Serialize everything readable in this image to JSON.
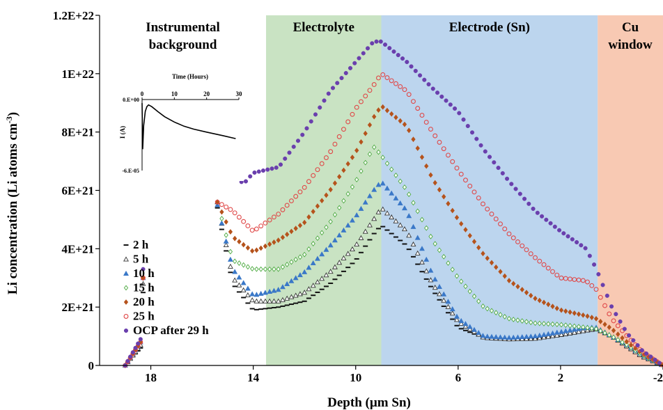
{
  "chart_data": {
    "type": "scatter",
    "xlabel": "Depth (µm Sn)",
    "ylabel": "Li concentration (Li atoms cm",
    "ylabel_sup": "-3",
    "ylabel_end": ")",
    "xlim": [
      20,
      -2
    ],
    "ylim": [
      0,
      1.2e+22
    ],
    "x_ticks": [
      18,
      14,
      10,
      6,
      2,
      -2
    ],
    "x_tick_labels": [
      "18",
      "14",
      "10",
      "6",
      "2",
      "-2"
    ],
    "y_ticks": [
      0,
      2e+21,
      4e+21,
      6e+21,
      8e+21,
      1e+22,
      1.2e+22
    ],
    "y_tick_labels": [
      "0",
      "2E+21",
      "4E+21",
      "6E+21",
      "8E+21",
      "1E+22",
      "1.2E+22"
    ],
    "regions": [
      {
        "label_lines": [
          "Instrumental",
          "background"
        ],
        "from": 20,
        "to": 13.5,
        "color": "#ffffff"
      },
      {
        "label_lines": [
          "Electrolyte"
        ],
        "from": 13.5,
        "to": 9.0,
        "color": "#c9e3c3"
      },
      {
        "label_lines": [
          "Electrode (Sn)"
        ],
        "from": 9.0,
        "to": 0.55,
        "color": "#bcd5ee"
      },
      {
        "label_lines": [
          "Cu",
          "window"
        ],
        "from": 0.55,
        "to": -2,
        "color": "#f8c9b3"
      }
    ],
    "series": [
      {
        "name": "2 h",
        "marker": "dash",
        "color": "#111111",
        "knots": [
          [
            19.0,
            0.0
          ],
          [
            18.4,
            0.6
          ],
          [
            18.3,
            2.5
          ],
          [
            18.2,
            0.3
          ],
          [
            15.4,
            5.4
          ],
          [
            14.8,
            2.8
          ],
          [
            14.0,
            1.9
          ],
          [
            13.0,
            2.0
          ],
          [
            12.0,
            2.2
          ],
          [
            11.0,
            2.8
          ],
          [
            10.0,
            3.6
          ],
          [
            9.3,
            4.5
          ],
          [
            9.0,
            4.8
          ],
          [
            8.0,
            4.1
          ],
          [
            7.0,
            2.6
          ],
          [
            6.0,
            1.3
          ],
          [
            5.0,
            0.95
          ],
          [
            4.0,
            0.9
          ],
          [
            3.0,
            0.92
          ],
          [
            2.0,
            1.0
          ],
          [
            1.0,
            1.15
          ],
          [
            0.6,
            1.2
          ],
          [
            0.0,
            0.95
          ],
          [
            -0.6,
            0.6
          ],
          [
            -1.2,
            0.25
          ],
          [
            -2.0,
            0.0
          ]
        ]
      },
      {
        "name": "5 h",
        "marker": "triangle-open",
        "color": "#333333",
        "knots": [
          [
            19.0,
            0.0
          ],
          [
            18.4,
            0.7
          ],
          [
            18.3,
            2.8
          ],
          [
            18.2,
            0.3
          ],
          [
            15.4,
            5.6
          ],
          [
            14.8,
            3.0
          ],
          [
            14.0,
            2.2
          ],
          [
            13.0,
            2.2
          ],
          [
            12.0,
            2.5
          ],
          [
            11.0,
            3.2
          ],
          [
            10.0,
            4.1
          ],
          [
            9.3,
            5.0
          ],
          [
            9.0,
            5.4
          ],
          [
            8.0,
            4.6
          ],
          [
            7.0,
            2.8
          ],
          [
            6.0,
            1.5
          ],
          [
            5.0,
            0.95
          ],
          [
            4.0,
            0.9
          ],
          [
            3.0,
            0.92
          ],
          [
            2.0,
            1.05
          ],
          [
            1.0,
            1.2
          ],
          [
            0.6,
            1.25
          ],
          [
            0.0,
            1.0
          ],
          [
            -0.6,
            0.65
          ],
          [
            -1.2,
            0.3
          ],
          [
            -2.0,
            0.0
          ]
        ]
      },
      {
        "name": "10 h",
        "marker": "triangle",
        "color": "#3a78c8",
        "knots": [
          [
            19.0,
            0.0
          ],
          [
            18.4,
            0.8
          ],
          [
            18.3,
            3.0
          ],
          [
            18.2,
            0.3
          ],
          [
            15.4,
            5.5
          ],
          [
            14.8,
            3.3
          ],
          [
            14.0,
            2.4
          ],
          [
            13.0,
            2.6
          ],
          [
            12.0,
            3.2
          ],
          [
            11.0,
            4.1
          ],
          [
            10.0,
            5.1
          ],
          [
            9.3,
            6.0
          ],
          [
            9.0,
            6.3
          ],
          [
            8.0,
            5.3
          ],
          [
            7.0,
            3.1
          ],
          [
            6.0,
            1.6
          ],
          [
            5.0,
            1.0
          ],
          [
            4.0,
            0.95
          ],
          [
            3.0,
            1.0
          ],
          [
            2.0,
            1.15
          ],
          [
            1.0,
            1.3
          ],
          [
            0.6,
            1.3
          ],
          [
            0.0,
            1.0
          ],
          [
            -0.6,
            0.7
          ],
          [
            -1.2,
            0.35
          ],
          [
            -2.0,
            0.0
          ]
        ]
      },
      {
        "name": "15 h",
        "marker": "diamond-open",
        "color": "#4caa40",
        "knots": [
          [
            19.0,
            0.0
          ],
          [
            18.4,
            0.8
          ],
          [
            18.3,
            3.0
          ],
          [
            18.2,
            0.3
          ],
          [
            15.4,
            5.6
          ],
          [
            14.8,
            3.6
          ],
          [
            14.0,
            3.3
          ],
          [
            13.0,
            3.3
          ],
          [
            12.0,
            3.8
          ],
          [
            11.0,
            4.9
          ],
          [
            10.0,
            6.3
          ],
          [
            9.3,
            7.5
          ],
          [
            9.0,
            7.2
          ],
          [
            8.0,
            6.0
          ],
          [
            7.0,
            4.3
          ],
          [
            6.0,
            3.0
          ],
          [
            5.0,
            2.0
          ],
          [
            4.0,
            1.6
          ],
          [
            3.0,
            1.45
          ],
          [
            2.0,
            1.4
          ],
          [
            1.0,
            1.3
          ],
          [
            0.6,
            1.25
          ],
          [
            0.0,
            1.0
          ],
          [
            -0.6,
            0.7
          ],
          [
            -1.2,
            0.35
          ],
          [
            -2.0,
            0.0
          ]
        ]
      },
      {
        "name": "20 h",
        "marker": "diamond",
        "color": "#b5531c",
        "knots": [
          [
            19.0,
            0.0
          ],
          [
            18.4,
            0.8
          ],
          [
            18.3,
            3.0
          ],
          [
            18.2,
            0.3
          ],
          [
            15.4,
            5.6
          ],
          [
            14.8,
            4.4
          ],
          [
            14.0,
            3.9
          ],
          [
            13.0,
            4.3
          ],
          [
            12.0,
            4.9
          ],
          [
            11.0,
            6.0
          ],
          [
            10.0,
            7.3
          ],
          [
            9.3,
            8.5
          ],
          [
            9.0,
            8.9
          ],
          [
            8.0,
            8.2
          ],
          [
            7.0,
            6.4
          ],
          [
            6.0,
            5.0
          ],
          [
            5.0,
            3.8
          ],
          [
            4.0,
            2.9
          ],
          [
            3.0,
            2.3
          ],
          [
            2.0,
            1.9
          ],
          [
            1.0,
            1.7
          ],
          [
            0.6,
            1.6
          ],
          [
            0.0,
            1.25
          ],
          [
            -0.6,
            0.8
          ],
          [
            -1.2,
            0.4
          ],
          [
            -2.0,
            0.0
          ]
        ]
      },
      {
        "name": "25 h",
        "marker": "circle-open",
        "color": "#e04848",
        "knots": [
          [
            19.0,
            0.0
          ],
          [
            18.4,
            0.8
          ],
          [
            18.3,
            3.0
          ],
          [
            18.2,
            0.3
          ],
          [
            15.4,
            5.6
          ],
          [
            14.8,
            5.3
          ],
          [
            14.0,
            4.6
          ],
          [
            13.0,
            5.2
          ],
          [
            12.0,
            6.1
          ],
          [
            11.0,
            7.3
          ],
          [
            10.0,
            8.8
          ],
          [
            9.3,
            9.6
          ],
          [
            9.0,
            10.0
          ],
          [
            8.0,
            9.4
          ],
          [
            7.0,
            8.0
          ],
          [
            6.0,
            6.7
          ],
          [
            5.0,
            5.5
          ],
          [
            4.0,
            4.5
          ],
          [
            3.0,
            3.7
          ],
          [
            2.0,
            3.0
          ],
          [
            1.0,
            2.9
          ],
          [
            0.6,
            2.6
          ],
          [
            0.0,
            1.6
          ],
          [
            -0.6,
            1.0
          ],
          [
            -1.2,
            0.45
          ],
          [
            -2.0,
            0.0
          ]
        ]
      },
      {
        "name": "OCP after 29 h",
        "marker": "circle",
        "color": "#6a3fad",
        "knots": [
          [
            19.0,
            0.0
          ],
          [
            18.4,
            0.9
          ],
          [
            18.3,
            3.3
          ],
          [
            18.2,
            0.3
          ],
          [
            14.8,
            6.8
          ],
          [
            14.4,
            6.2
          ],
          [
            14.0,
            6.6
          ],
          [
            13.0,
            6.8
          ],
          [
            12.0,
            8.0
          ],
          [
            11.0,
            9.4
          ],
          [
            10.0,
            10.4
          ],
          [
            9.3,
            11.1
          ],
          [
            9.0,
            11.1
          ],
          [
            8.0,
            10.4
          ],
          [
            7.0,
            9.5
          ],
          [
            6.0,
            8.7
          ],
          [
            5.0,
            7.4
          ],
          [
            4.0,
            6.3
          ],
          [
            3.0,
            5.3
          ],
          [
            2.0,
            4.6
          ],
          [
            1.0,
            4.0
          ],
          [
            0.6,
            3.3
          ],
          [
            0.0,
            2.0
          ],
          [
            -0.6,
            1.1
          ],
          [
            -1.2,
            0.5
          ],
          [
            -2.0,
            0.0
          ]
        ]
      }
    ],
    "inset": {
      "xlabel": "Time (Hours)",
      "ylabel": "I (A)",
      "xlim": [
        0,
        30
      ],
      "ylim": [
        -6e-05,
        0
      ],
      "x_ticks": [
        0,
        10,
        20,
        30
      ],
      "x_tick_labels": [
        "0",
        "10",
        "20",
        "30"
      ],
      "y_tick_labels": [
        "0.E+00",
        "-6.E-05"
      ],
      "curve": [
        [
          0.0,
          -0.3
        ],
        [
          0.2,
          -4.2
        ],
        [
          0.5,
          -2.2
        ],
        [
          1.0,
          -1.0
        ],
        [
          1.5,
          -0.6
        ],
        [
          2.0,
          -0.45
        ],
        [
          3.0,
          -0.6
        ],
        [
          5.0,
          -1.05
        ],
        [
          7.0,
          -1.45
        ],
        [
          10.0,
          -1.9
        ],
        [
          13.0,
          -2.25
        ],
        [
          16.0,
          -2.5
        ],
        [
          20.0,
          -2.75
        ],
        [
          25.0,
          -3.05
        ],
        [
          29.0,
          -3.3
        ]
      ]
    }
  }
}
